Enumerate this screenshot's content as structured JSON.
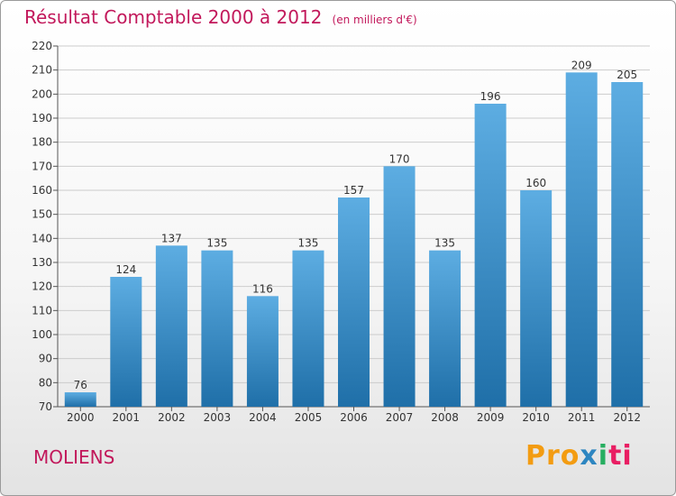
{
  "header": {
    "title": "Résultat Comptable 2000 à 2012",
    "subtitle": "(en milliers d'€)"
  },
  "footer": {
    "place": "MOLIENS",
    "logo_parts": [
      "Pro",
      "x",
      "i",
      "ti"
    ]
  },
  "colors": {
    "accent": "#c2185b",
    "bar_top": "#5dade2",
    "bar_bottom": "#1f6fa8",
    "grid": "#cccccc"
  },
  "chart_data": {
    "type": "bar",
    "categories": [
      "2000",
      "2001",
      "2002",
      "2003",
      "2004",
      "2005",
      "2006",
      "2007",
      "2008",
      "2009",
      "2010",
      "2011",
      "2012"
    ],
    "values": [
      76,
      124,
      137,
      135,
      116,
      135,
      157,
      170,
      135,
      196,
      160,
      209,
      205
    ],
    "ylim": [
      70,
      220
    ],
    "yticks": [
      70,
      80,
      90,
      100,
      110,
      120,
      130,
      140,
      150,
      160,
      170,
      180,
      190,
      200,
      210,
      220
    ],
    "grid": true,
    "data_labels": true
  }
}
